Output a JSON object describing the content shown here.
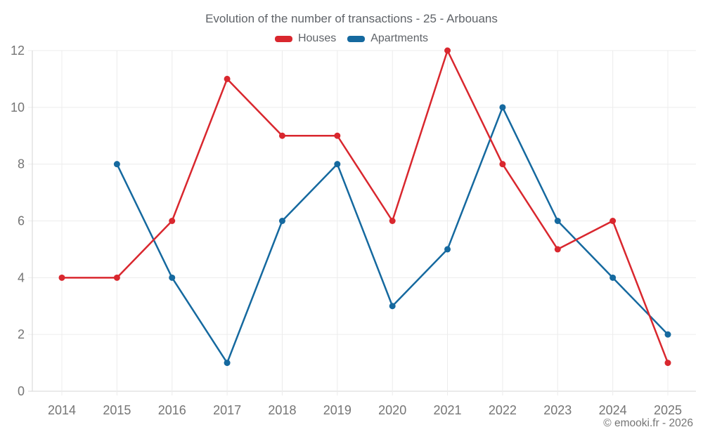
{
  "chart_data": {
    "type": "line",
    "title": "Evolution of the number of transactions - 25 - Arbouans",
    "categories": [
      "2014",
      "2015",
      "2016",
      "2017",
      "2018",
      "2019",
      "2020",
      "2021",
      "2022",
      "2023",
      "2024",
      "2025"
    ],
    "series": [
      {
        "name": "Houses",
        "color": "#d9272e",
        "values": [
          4,
          4,
          6,
          11,
          9,
          9,
          6,
          12,
          8,
          5,
          6,
          1
        ]
      },
      {
        "name": "Apartments",
        "color": "#15699f",
        "values": [
          null,
          8,
          4,
          1,
          6,
          8,
          3,
          5,
          10,
          6,
          4,
          2
        ]
      }
    ],
    "ylim": [
      0,
      12
    ],
    "yticks": [
      0,
      2,
      4,
      6,
      8,
      10,
      12
    ],
    "grid": true,
    "legend_position": "top",
    "grid_color": "#ececec",
    "axis_color": "#d6d6d6",
    "tick_label_color": "#757575",
    "title_color": "#5f6368"
  },
  "footer": {
    "copyright": "© emooki.fr - 2026"
  }
}
